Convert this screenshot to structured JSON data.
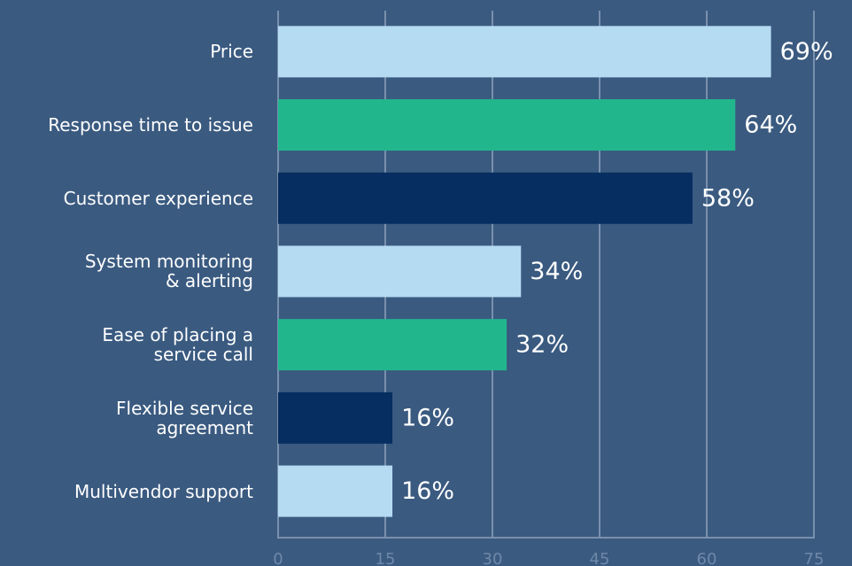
{
  "chart_data": {
    "type": "bar",
    "orientation": "horizontal",
    "categories": [
      "Price",
      "Response time to issue",
      "Customer experience",
      "System monitoring\n& alerting",
      "Ease of placing a\nservice call",
      "Flexible service\nagreement",
      "Multivendor support"
    ],
    "values": [
      69,
      64,
      58,
      34,
      32,
      16,
      16
    ],
    "value_labels": [
      "69%",
      "64%",
      "58%",
      "34%",
      "32%",
      "16%",
      "16%"
    ],
    "colors": [
      "#b5dbf3",
      "#22b68d",
      "#062e60",
      "#b5dbf3",
      "#22b68d",
      "#062e60",
      "#b5dbf3"
    ],
    "xlim": [
      0,
      75
    ],
    "xticks": [
      0,
      15,
      30,
      45,
      60,
      75
    ],
    "grid": true
  }
}
